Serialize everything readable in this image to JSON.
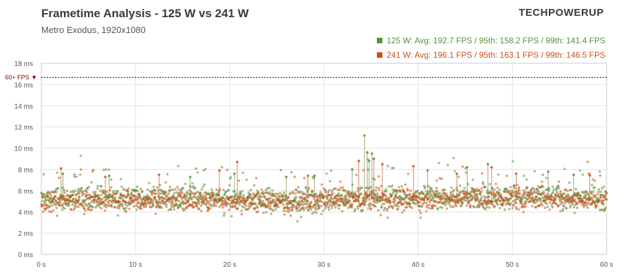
{
  "header": {
    "title": "Frametime Analysis - 125 W vs 241 W",
    "subtitle": "Metro  Exodus, 1920x1080",
    "brand": "TECHPOWERUP"
  },
  "chart_data": {
    "type": "scatter",
    "title": "Frametime Analysis - 125 W vs 241 W",
    "subtitle": "Metro  Exodus, 1920x1080",
    "xlabel": "",
    "ylabel": "",
    "xlim": [
      0,
      60
    ],
    "ylim": [
      0,
      18
    ],
    "x_ticks": [
      0,
      10,
      20,
      30,
      40,
      50,
      60
    ],
    "x_tick_labels": [
      "0 s",
      "10 s",
      "20 s",
      "30 s",
      "40 s",
      "50 s",
      "60 s"
    ],
    "y_ticks": [
      0,
      2,
      4,
      6,
      8,
      10,
      12,
      14,
      16,
      18
    ],
    "y_tick_labels": [
      "0 ms",
      "2 ms",
      "4 ms",
      "6 ms",
      "8 ms",
      "10 ms",
      "12 ms",
      "14 ms",
      "16 ms",
      "18 ms"
    ],
    "grid": true,
    "legend_position": "top-right",
    "reference_line": {
      "value": 16.67,
      "label": "60+ FPS ▼",
      "color": "#8b0000"
    },
    "series": [
      {
        "name": "125  W",
        "color": "#5a8f3c",
        "legend_text": "125  W: Avg: 192.7 FPS / 95th: 158.2 FPS / 99th: 141.4 FPS",
        "baseline_ms": 5.2,
        "spread_ms": 0.55,
        "spikes": [
          [
            34.3,
            11.2
          ],
          [
            35.1,
            9.5
          ],
          [
            34.8,
            8.8
          ],
          [
            45.2,
            8.2
          ],
          [
            47.4,
            8.5
          ],
          [
            33.0,
            8.0
          ],
          [
            20.5,
            7.6
          ],
          [
            7.2,
            7.4
          ],
          [
            53.8,
            7.8
          ],
          [
            41.0,
            7.9
          ],
          [
            2.3,
            7.6
          ],
          [
            15.8,
            7.3
          ],
          [
            56.5,
            7.5
          ],
          [
            26.0,
            7.3
          ],
          [
            29.0,
            7.4
          ]
        ]
      },
      {
        "name": "241  W",
        "color": "#c8501a",
        "legend_text": "241  W: Avg: 196.1 FPS / 95th: 163.1 FPS / 99th: 146.5 FPS",
        "baseline_ms": 5.05,
        "spread_ms": 0.5,
        "spikes": [
          [
            34.6,
            9.6
          ],
          [
            35.3,
            9.0
          ],
          [
            2.1,
            8.1
          ],
          [
            20.8,
            8.7
          ],
          [
            36.2,
            8.5
          ],
          [
            47.8,
            8.2
          ],
          [
            39.5,
            8.3
          ],
          [
            18.9,
            7.9
          ],
          [
            33.7,
            8.8
          ],
          [
            12.5,
            7.5
          ],
          [
            50.4,
            7.6
          ],
          [
            44.1,
            7.6
          ],
          [
            58.2,
            7.5
          ],
          [
            6.8,
            7.3
          ],
          [
            28.3,
            7.4
          ]
        ]
      }
    ]
  }
}
